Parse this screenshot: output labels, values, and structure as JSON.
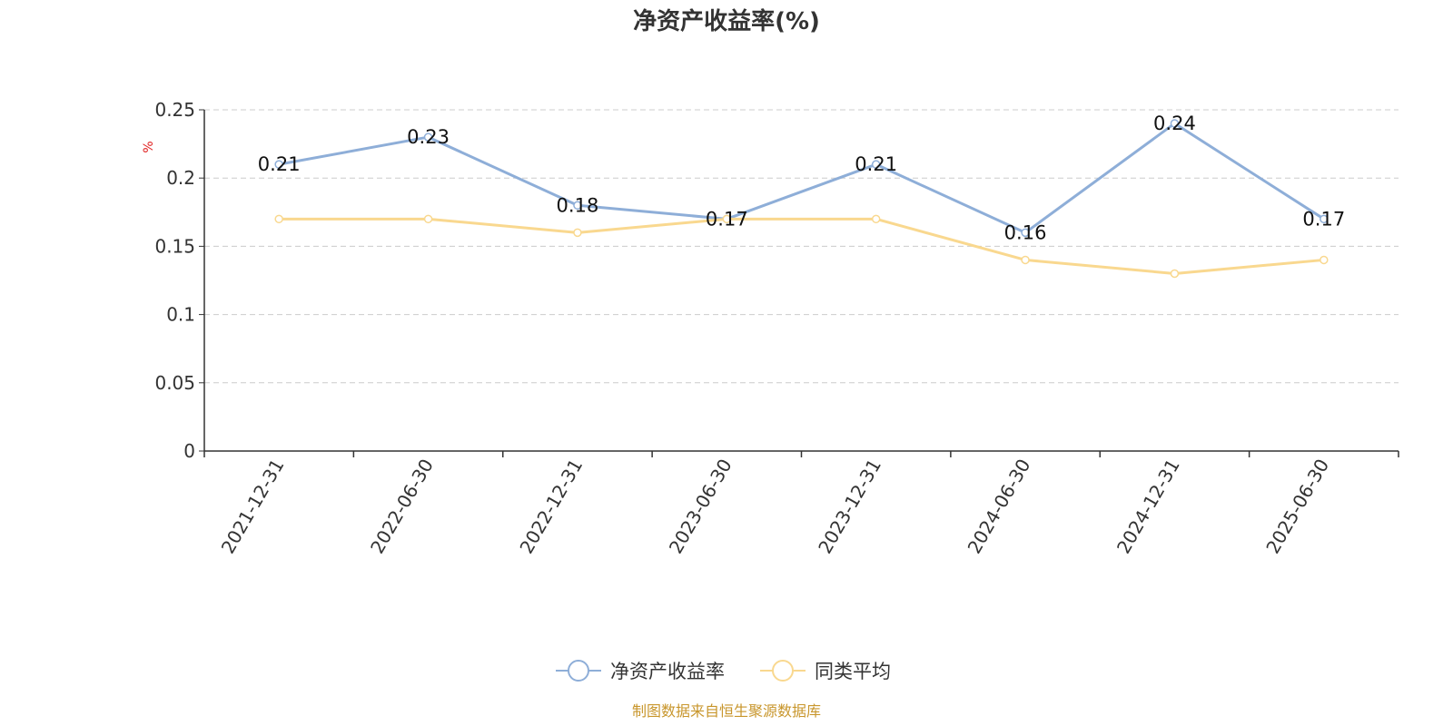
{
  "chart_data": {
    "type": "line",
    "title": "净资产收益率(%)",
    "ylabel": "%",
    "categories": [
      "2021-12-31",
      "2022-06-30",
      "2022-12-31",
      "2023-06-30",
      "2023-12-31",
      "2024-06-30",
      "2024-12-31",
      "2025-06-30"
    ],
    "ylim": [
      0,
      0.25
    ],
    "yticks": [
      "0",
      "0.05",
      "0.1",
      "0.15",
      "0.2",
      "0.25"
    ],
    "grid": true,
    "legend_position": "bottom",
    "series": [
      {
        "name": "净资产收益率",
        "color": "#8eaed8",
        "values": [
          0.21,
          0.23,
          0.18,
          0.17,
          0.21,
          0.16,
          0.24,
          0.17
        ],
        "labels": [
          "0.21",
          "0.23",
          "0.18",
          "0.17",
          "0.21",
          "0.16",
          "0.24",
          "0.17"
        ]
      },
      {
        "name": "同类平均",
        "color": "#f9d88f",
        "values": [
          0.17,
          0.17,
          0.16,
          0.17,
          0.17,
          0.14,
          0.13,
          0.14
        ]
      }
    ]
  },
  "source_text": "制图数据来自恒生聚源数据库"
}
